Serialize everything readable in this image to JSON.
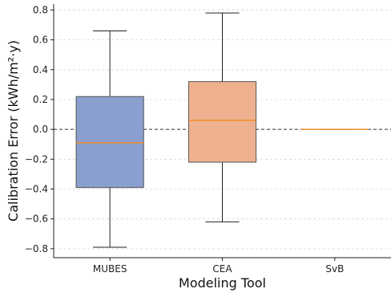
{
  "chart_data": {
    "type": "box",
    "title": "",
    "xlabel": "Modeling Tool",
    "ylabel": "Calibration Error (kWh/m²·y)",
    "ylim": [
      -0.86,
      0.84
    ],
    "yticks": [
      -0.8,
      -0.6,
      -0.4,
      -0.2,
      0.0,
      0.2,
      0.4,
      0.6,
      0.8
    ],
    "ytick_labels": [
      "−0.8",
      "−0.6",
      "−0.4",
      "−0.2",
      "0.0",
      "0.2",
      "0.4",
      "0.6",
      "0.8"
    ],
    "grid": "horizontal dashed",
    "reference_line_y": 0.0,
    "median_color": "#f28e2b",
    "categories": [
      "MUBES",
      "CEA",
      "SvB"
    ],
    "boxes": [
      {
        "category": "MUBES",
        "whislo": -0.79,
        "q1": -0.39,
        "med": -0.09,
        "q3": 0.22,
        "whishi": 0.66,
        "color": "#8a9fce"
      },
      {
        "category": "CEA",
        "whislo": -0.62,
        "q1": -0.22,
        "med": 0.06,
        "q3": 0.32,
        "whishi": 0.78,
        "color": "#eeb190"
      },
      {
        "category": "SvB",
        "whislo": 0.0,
        "q1": 0.0,
        "med": 0.0,
        "q3": 0.0,
        "whishi": 0.0,
        "color": "#8fbf8f"
      }
    ]
  }
}
